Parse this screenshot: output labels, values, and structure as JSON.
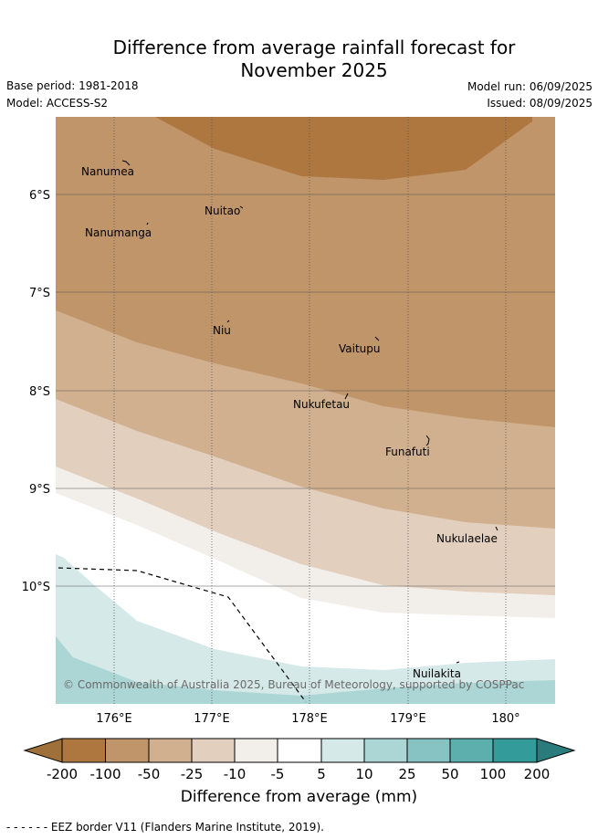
{
  "header": {
    "title_line1": "Difference from average rainfall forecast for",
    "title_line2": "November 2025",
    "base_period": "Base period: 1981-2018",
    "model": "Model: ACCESS-S2",
    "model_run": "Model run: 06/09/2025",
    "issued": "Issued: 08/09/2025"
  },
  "map": {
    "lat_ticks": [
      "6°S",
      "7°S",
      "8°S",
      "9°S",
      "10°S"
    ],
    "lon_ticks": [
      "176°E",
      "177°E",
      "178°E",
      "179°E",
      "180°"
    ],
    "places": [
      "Nanumea",
      "Nuitao",
      "Nanumanga",
      "Niu",
      "Vaitupu",
      "Nukufetau",
      "Funafuti",
      "Nukulaelae",
      "Nuilakita"
    ],
    "copyright": "© Commonwealth of Australia 2025, Bureau of Meteorology, supported by COSPPac"
  },
  "colorbar": {
    "ticks": [
      "-200",
      "-100",
      "-50",
      "-25",
      "-10",
      "-5",
      "5",
      "10",
      "25",
      "50",
      "100",
      "200"
    ],
    "colors": [
      "#a0703a",
      "#ad773f",
      "#c0956a",
      "#d1b08f",
      "#e2cfbe",
      "#f2eee9",
      "#ffffff",
      "#d5e9e8",
      "#acd6d5",
      "#87c3c2",
      "#5dafae",
      "#339c9b",
      "#2a7c7c"
    ],
    "label": "Difference from average (mm)"
  },
  "footer": "- -  - -  - - EEZ border V11 (Flanders Marine Institute, 2019)."
}
